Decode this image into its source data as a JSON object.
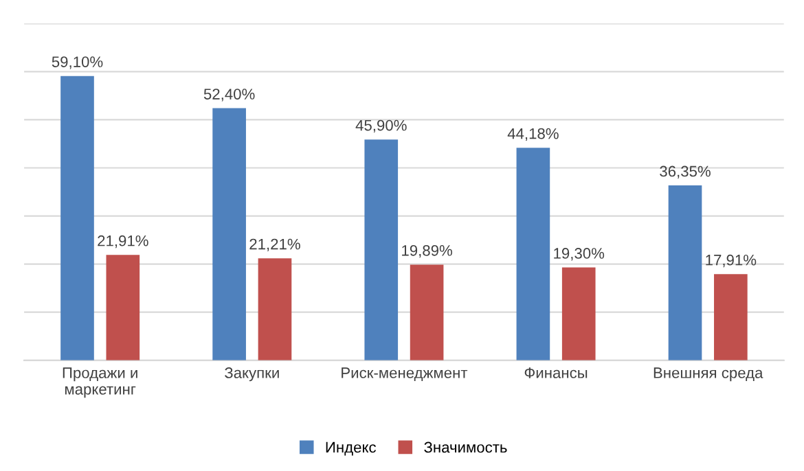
{
  "chart_data": {
    "type": "bar",
    "categories": [
      "Продажи и маркетинг",
      "Закупки",
      "Риск-менеджмент",
      "Финансы",
      "Внешняя среда"
    ],
    "series": [
      {
        "name": "Индекс",
        "color": "#4f81bd",
        "values": [
          59.1,
          52.4,
          45.9,
          44.18,
          36.35
        ],
        "value_labels": [
          "59,10%",
          "52,40%",
          "45,90%",
          "44,18%",
          "36,35%"
        ]
      },
      {
        "name": "Значимость",
        "color": "#c0504d",
        "values": [
          21.91,
          21.21,
          19.89,
          19.3,
          17.91
        ],
        "value_labels": [
          "21,91%",
          "21,21%",
          "19,89%",
          "19,30%",
          "17,91%"
        ]
      }
    ],
    "ylim": [
      0,
      70
    ],
    "yticks": [
      {
        "value": 0,
        "label": null
      },
      {
        "value": 10,
        "label": null
      },
      {
        "value": 20,
        "label": null
      },
      {
        "value": 30,
        "label": null
      },
      {
        "value": 40,
        "label": null
      },
      {
        "value": 50,
        "label": null
      },
      {
        "value": 60,
        "label": null
      },
      {
        "value": 70,
        "label": null
      }
    ],
    "tick_labels": "x",
    "grid": "y",
    "legend": "bottom"
  }
}
